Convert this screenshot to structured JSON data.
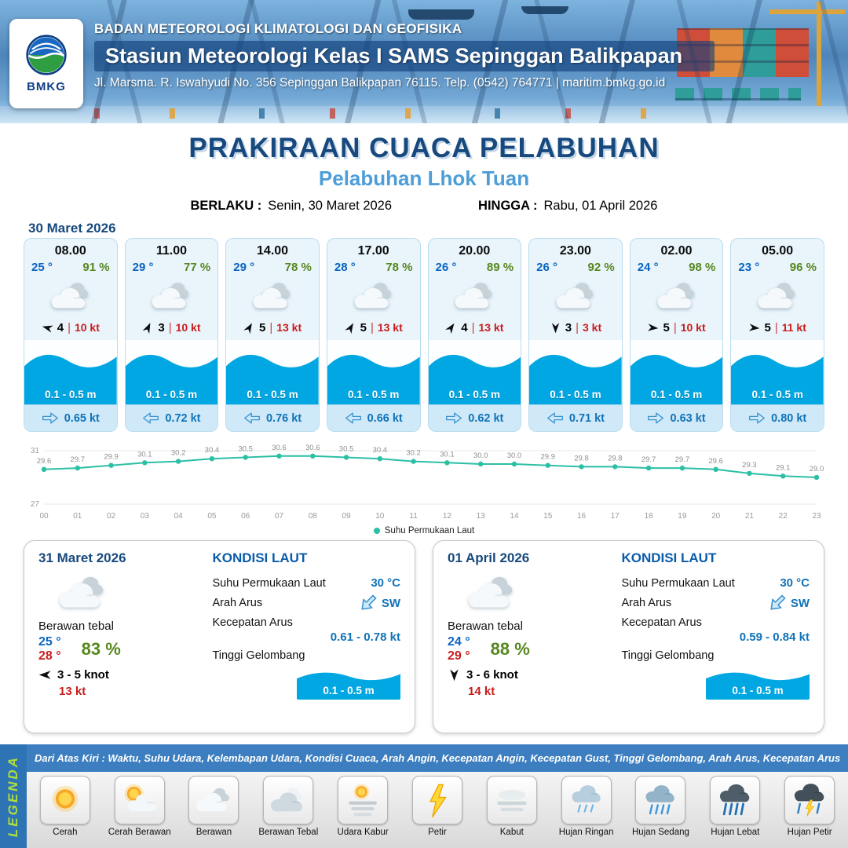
{
  "header": {
    "agency": "BADAN METEOROLOGI KLIMATOLOGI DAN GEOFISIKA",
    "station": "Stasiun Meteorologi Kelas I SAMS Sepinggan Balikpapan",
    "address": "Jl. Marsma. R. Iswahyudi No. 356 Sepinggan Balikpapan 76115. Telp. (0542) 764771 | maritim.bmkg.go.id",
    "logo": "BMKG"
  },
  "title": {
    "main": "PRAKIRAAN CUACA PELABUHAN",
    "port": "Pelabuhan Lhok Tuan",
    "berlaku_label": "BERLAKU :",
    "berlaku_value": "Senin, 30 Maret 2026",
    "hingga_label": "HINGGA :",
    "hingga_value": "Rabu, 01 April 2026"
  },
  "forecast_date": "30 Maret 2026",
  "hourly": [
    {
      "time": "08.00",
      "temp": "25 °",
      "rh": "91 %",
      "wind_force": "4",
      "wind_speed": "10 kt",
      "wind_deg": 195,
      "wave": "0.1 - 0.5 m",
      "current": "0.65 kt",
      "current_deg": 0,
      "icon": "berawan"
    },
    {
      "time": "11.00",
      "temp": "29 °",
      "rh": "77 %",
      "wind_force": "3",
      "wind_speed": "10 kt",
      "wind_deg": -65,
      "wave": "0.1 - 0.5 m",
      "current": "0.72 kt",
      "current_deg": 180,
      "icon": "berawan"
    },
    {
      "time": "14.00",
      "temp": "29 °",
      "rh": "78 %",
      "wind_force": "5",
      "wind_speed": "13 kt",
      "wind_deg": -60,
      "wave": "0.1 - 0.5 m",
      "current": "0.76 kt",
      "current_deg": 180,
      "icon": "berawan"
    },
    {
      "time": "17.00",
      "temp": "28 °",
      "rh": "78 %",
      "wind_force": "5",
      "wind_speed": "13 kt",
      "wind_deg": -60,
      "wave": "0.1 - 0.5 m",
      "current": "0.66 kt",
      "current_deg": 180,
      "icon": "berawan"
    },
    {
      "time": "20.00",
      "temp": "26 °",
      "rh": "89 %",
      "wind_force": "4",
      "wind_speed": "13 kt",
      "wind_deg": -55,
      "wave": "0.1 - 0.5 m",
      "current": "0.62 kt",
      "current_deg": 0,
      "icon": "berawan"
    },
    {
      "time": "23.00",
      "temp": "26 °",
      "rh": "92 %",
      "wind_force": "3",
      "wind_speed": "3 kt",
      "wind_deg": 90,
      "wave": "0.1 - 0.5 m",
      "current": "0.71 kt",
      "current_deg": 180,
      "icon": "berawan"
    },
    {
      "time": "02.00",
      "temp": "24 °",
      "rh": "98 %",
      "wind_force": "5",
      "wind_speed": "10 kt",
      "wind_deg": 5,
      "wave": "0.1 - 0.5 m",
      "current": "0.63 kt",
      "current_deg": 0,
      "icon": "berawan"
    },
    {
      "time": "05.00",
      "temp": "23 °",
      "rh": "96 %",
      "wind_force": "5",
      "wind_speed": "11 kt",
      "wind_deg": 5,
      "wave": "0.1 - 0.5 m",
      "current": "0.80 kt",
      "current_deg": 0,
      "icon": "berawan"
    }
  ],
  "chart_data": {
    "type": "line",
    "title": "Suhu Permukaan Laut",
    "x": [
      "00",
      "01",
      "02",
      "03",
      "04",
      "05",
      "06",
      "07",
      "08",
      "09",
      "10",
      "11",
      "12",
      "13",
      "14",
      "15",
      "16",
      "17",
      "18",
      "19",
      "20",
      "21",
      "22",
      "23"
    ],
    "values": [
      29.6,
      29.7,
      29.9,
      30.1,
      30.2,
      30.4,
      30.5,
      30.6,
      30.6,
      30.5,
      30.4,
      30.2,
      30.1,
      30.0,
      30.0,
      29.9,
      29.8,
      29.8,
      29.7,
      29.7,
      29.6,
      29.3,
      29.1,
      29.0
    ],
    "ylim": [
      27,
      31
    ],
    "line_color": "#2cbfa5",
    "legend": "Suhu Permukaan Laut"
  },
  "sea_labels": {
    "kondisi": "KONDISI LAUT",
    "sst": "Suhu Permukaan Laut",
    "arah": "Arah Arus",
    "kecepatan": "Kecepatan Arus",
    "gelombang": "Tinggi Gelombang"
  },
  "daily": [
    {
      "date": "31 Maret 2026",
      "condition": "Berawan tebal",
      "icon": "berawan",
      "temp_min": "25 °",
      "temp_max": "28 °",
      "rh": "83 %",
      "wind_range": "3 - 5 knot",
      "wind_deg": 180,
      "gust": "13 kt",
      "sst": "30 °C",
      "current_dir": "SW",
      "current_dir_deg": 135,
      "current_speed": "0.61 - 0.78 kt",
      "wave": "0.1 - 0.5 m"
    },
    {
      "date": "01 April 2026",
      "condition": "Berawan tebal",
      "icon": "berawan",
      "temp_min": "24 °",
      "temp_max": "29 °",
      "rh": "88 %",
      "wind_range": "3 - 6 knot",
      "wind_deg": 90,
      "gust": "14 kt",
      "sst": "30 °C",
      "current_dir": "SW",
      "current_dir_deg": 135,
      "current_speed": "0.59 - 0.84 kt",
      "wave": "0.1 - 0.5 m"
    }
  ],
  "bottom": {
    "info": "Dari Atas Kiri : Waktu, Suhu Udara, Kelembapan Udara, Kondisi Cuaca, Arah Angin, Kecepatan Angin, Kecepatan Gust, Tinggi Gelombang, Arah Arus, Kecepatan Arus",
    "legenda": "LEGENDA",
    "legend": [
      {
        "label": "Cerah",
        "icon": "cerah"
      },
      {
        "label": "Cerah Berawan",
        "icon": "cerah-berawan"
      },
      {
        "label": "Berawan",
        "icon": "berawan"
      },
      {
        "label": "Berawan Tebal",
        "icon": "berawan-tebal"
      },
      {
        "label": "Udara Kabur",
        "icon": "udara-kabur"
      },
      {
        "label": "Petir",
        "icon": "petir"
      },
      {
        "label": "Kabut",
        "icon": "kabut"
      },
      {
        "label": "Hujan Ringan",
        "icon": "hujan-ringan"
      },
      {
        "label": "Hujan Sedang",
        "icon": "hujan-sedang"
      },
      {
        "label": "Hujan Lebat",
        "icon": "hujan-lebat"
      },
      {
        "label": "Hujan Petir",
        "icon": "hujan-petir"
      }
    ]
  }
}
